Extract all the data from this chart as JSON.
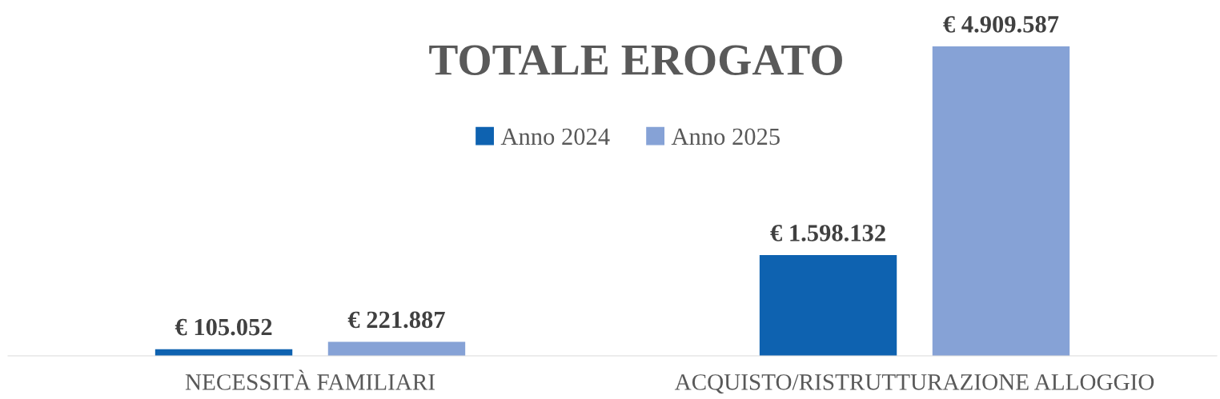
{
  "chart_data": {
    "type": "bar",
    "title": "TOTALE EROGATO",
    "categories": [
      "NECESSITÀ FAMILIARI",
      "ACQUISTO/RISTRUTTURAZIONE ALLOGGIO"
    ],
    "series": [
      {
        "name": "Anno 2024",
        "color": "#0e62b0",
        "values": [
          105052,
          1598132
        ],
        "value_labels": [
          "€ 105.052",
          "€ 1.598.132"
        ]
      },
      {
        "name": "Anno 2025",
        "color": "#86a2d6",
        "values": [
          221887,
          4909587
        ],
        "value_labels": [
          "€ 221.887",
          "€ 4.909.587"
        ]
      }
    ],
    "legend": "top",
    "grid": false
  }
}
